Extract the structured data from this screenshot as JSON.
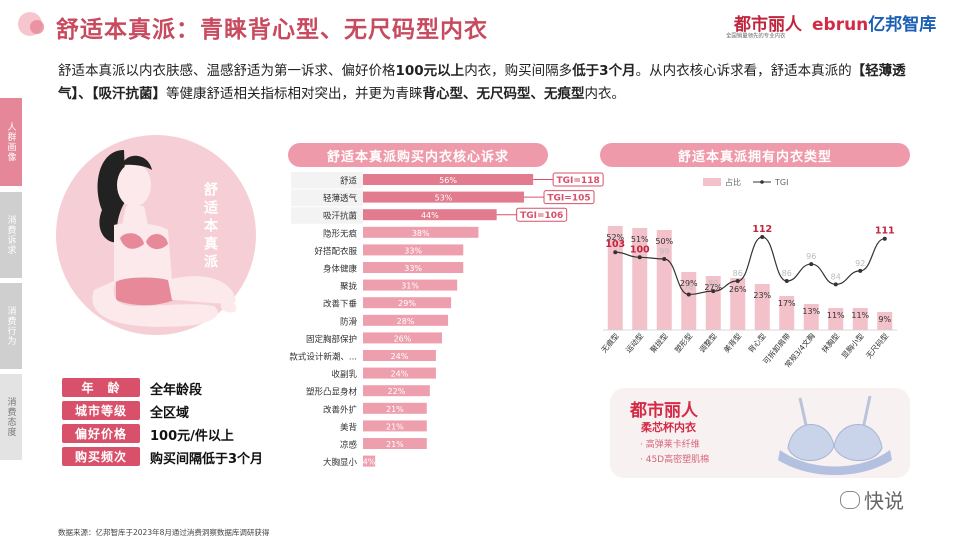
{
  "header": {
    "title": "舒适本真派：青睐背心型、无尺码型内衣",
    "brand1": "都市丽人",
    "brand1_sub": "全国销量领先的专业内衣",
    "brand2_a": "ebrun",
    "brand2_b": "亿邦智库"
  },
  "intro": {
    "t1": "舒适本真派以内衣肤感、温感舒适为第一诉求、偏好价格",
    "b1": "100元以上",
    "t2": "内衣，购买间隔多",
    "b2": "低于3个月",
    "t3": "。从内衣核心诉求看，舒适本真派的",
    "b3": "【轻薄透气】、【吸汗抗菌】",
    "t4": "等健康舒适相关指标相对突出，并更为青睐",
    "b4": "背心型、无尺码型、无痕型",
    "t5": "内衣。"
  },
  "side_tabs": [
    "人群画像",
    "消费诉求",
    "消费行为",
    "消费态度"
  ],
  "persona": {
    "vertical_label": "舒适本真派",
    "attributes": [
      {
        "label": "年　龄",
        "value": "全年龄段"
      },
      {
        "label": "城市等级",
        "value": "全区域"
      },
      {
        "label": "偏好价格",
        "value": "100元/件以上"
      },
      {
        "label": "购买频次",
        "value": "购买间隔低于3个月"
      }
    ]
  },
  "chart_data": [
    {
      "type": "bar",
      "orientation": "horizontal",
      "title": "舒适本真派购买内衣核心诉求",
      "categories": [
        "舒适",
        "轻薄透气",
        "吸汗抗菌",
        "隐形无痕",
        "好搭配衣服",
        "身体健康",
        "聚拢",
        "改善下垂",
        "防滑",
        "固定胸部保护",
        "款式设计新潮、...",
        "收副乳",
        "塑形凸显身材",
        "改善外扩",
        "美背",
        "凉感",
        "大胸显小"
      ],
      "values": [
        56,
        53,
        44,
        38,
        33,
        33,
        31,
        29,
        28,
        26,
        24,
        24,
        22,
        21,
        21,
        21,
        4
      ],
      "value_labels": [
        "56%",
        "53%",
        "44%",
        "38%",
        "33%",
        "33%",
        "31%",
        "29%",
        "28%",
        "26%",
        "24%",
        "24%",
        "22%",
        "21%",
        "21%",
        "21%",
        "4%"
      ],
      "callouts": [
        {
          "category": "舒适",
          "text": "TGI=118"
        },
        {
          "category": "轻薄透气",
          "text": "TGI=105"
        },
        {
          "category": "吸汗抗菌",
          "text": "TGI=106"
        }
      ],
      "xlim": [
        0,
        70
      ]
    },
    {
      "type": "bar",
      "title": "舒适本真派拥有内衣类型",
      "categories": [
        "无痕型",
        "运动型",
        "聚拢型",
        "塑形型",
        "调整型",
        "美背型",
        "背心型",
        "可拆卸肩带",
        "常规3/4文胸",
        "抹胸型",
        "显胸小型",
        "无尺码型"
      ],
      "series": [
        {
          "name": "占比",
          "values": [
            52,
            51,
            50,
            29,
            27,
            26,
            23,
            17,
            13,
            11,
            11,
            9
          ],
          "labels": [
            "52%",
            "51%",
            "50%",
            "29%",
            "27%",
            "26%",
            "23%",
            "17%",
            "13%",
            "11%",
            "11%",
            "9%"
          ]
        },
        {
          "name": "TGI",
          "values": [
            103,
            100,
            99,
            78,
            80,
            86,
            112,
            86,
            96,
            84,
            92,
            111
          ]
        }
      ],
      "highlighted_tgi": [
        103,
        100,
        112,
        111
      ],
      "ylim": [
        0,
        60
      ],
      "y2lim": [
        60,
        125
      ],
      "legend": "top-center"
    }
  ],
  "ad": {
    "brand": "都市丽人",
    "product": "柔芯杯内衣",
    "features": [
      "· 高弹莱卡纤维",
      "· 45D高密塑肌棉"
    ]
  },
  "source": "数据来源：亿邦智库于2023年8月通过消费洞察数据库调研获得",
  "watermark": "快说",
  "colors": {
    "accent": "#d9506a",
    "bar": "#e8899a",
    "bar_light": "#f2c1ca",
    "title": "#c84a5f"
  }
}
